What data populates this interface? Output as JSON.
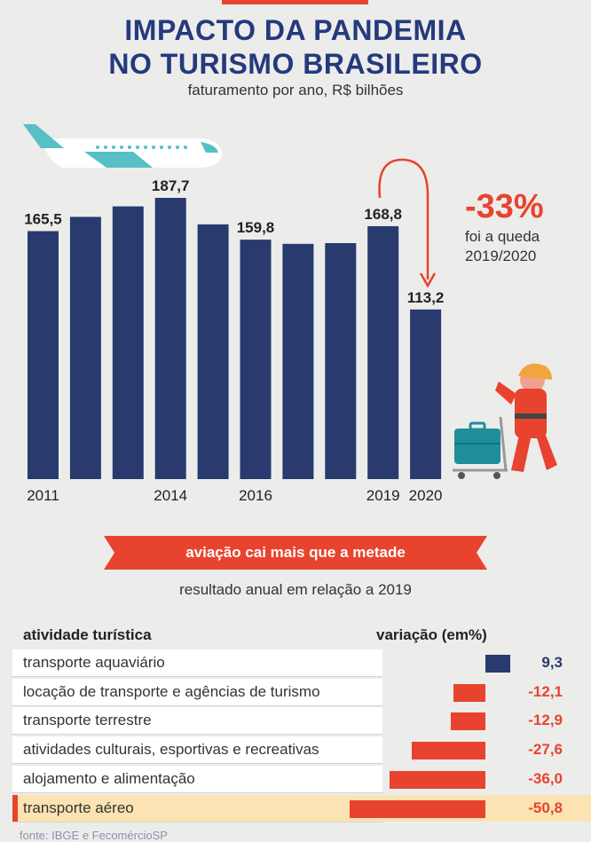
{
  "header": {
    "title_line1": "IMPACTO DA PANDEMIA",
    "title_line2": "NO TURISMO BRASILEIRO",
    "subtitle": "faturamento por ano, R$ bilhões"
  },
  "callout": {
    "percent": "-33%",
    "line1": "foi a queda",
    "line2": "2019/2020"
  },
  "chart_data": [
    {
      "type": "bar",
      "title": "IMPACTO DA PANDEMIA NO TURISMO BRASILEIRO",
      "subtitle": "faturamento por ano, R$ bilhões",
      "categories": [
        "2011",
        "2012",
        "2013",
        "2014",
        "2015",
        "2016",
        "2017",
        "2018",
        "2019",
        "2020"
      ],
      "values": [
        165.5,
        175.0,
        182.0,
        187.7,
        170.0,
        159.8,
        157.0,
        157.5,
        168.8,
        113.2
      ],
      "value_labels": [
        "165,5",
        "",
        "",
        "187,7",
        "",
        "159,8",
        "",
        "",
        "168,8",
        "113,2"
      ],
      "tick_labels": [
        "2011",
        "",
        "",
        "2014",
        "",
        "2016",
        "",
        "",
        "2019",
        "2020"
      ],
      "bar_color": "#283a6e",
      "ylim": [
        0,
        200
      ]
    },
    {
      "type": "bar",
      "orientation": "horizontal",
      "title": "aviação cai mais que a metade",
      "subtitle": "resultado anual em relação a 2019",
      "header_label": "atividade turística",
      "header_value": "variação (em%)",
      "categories": [
        "transporte aquaviário",
        "locação de transporte e agências de turismo",
        "transporte terrestre",
        "atividades culturais, esportivas e recreativas",
        "alojamento e alimentação",
        "transporte aéreo"
      ],
      "values": [
        9.3,
        -12.1,
        -12.9,
        -27.6,
        -36.0,
        -50.8
      ],
      "value_labels": [
        "9,3",
        "-12,1",
        "-12,9",
        "-27,6",
        "-36,0",
        "-50,8"
      ],
      "positive_color": "#283a6e",
      "negative_color": "#e8432e",
      "highlighted": "transporte aéreo"
    }
  ],
  "source": "fonte: IBGE e FecomércioSP",
  "colors": {
    "accent": "#e8432e",
    "navy": "#283a6e",
    "title": "#243a7c",
    "highlight": "#fbe3b3",
    "background": "#ececeb"
  }
}
